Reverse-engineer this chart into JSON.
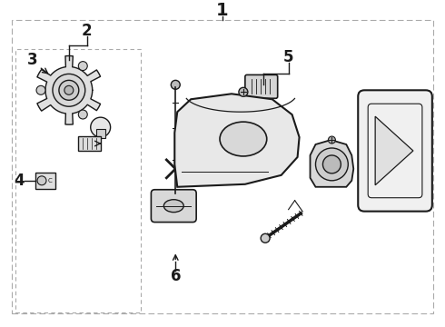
{
  "bg_color": "#ffffff",
  "line_color": "#1a1a1a",
  "border_color": "#666666",
  "fig_width": 4.9,
  "fig_height": 3.6,
  "dpi": 100
}
